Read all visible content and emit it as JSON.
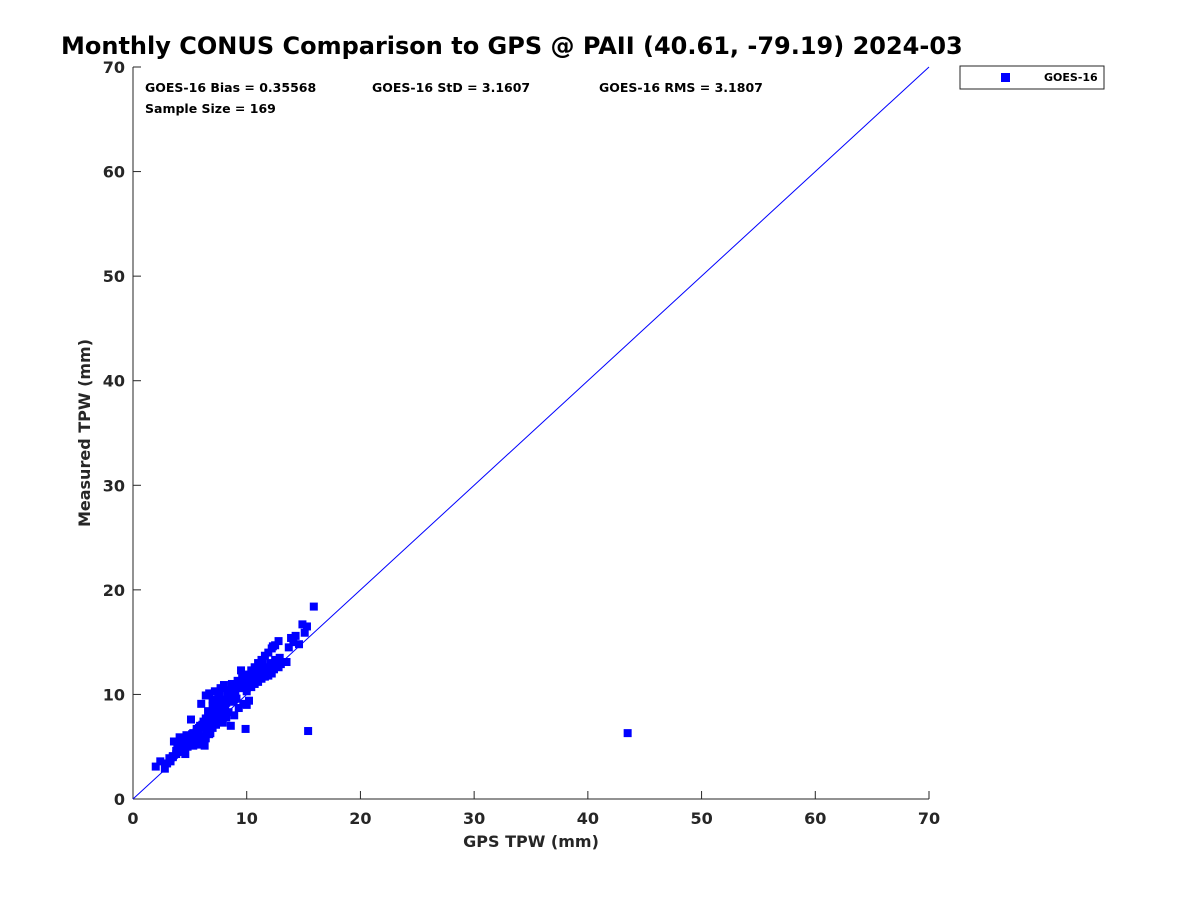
{
  "chart_data": {
    "type": "scatter",
    "title": "Monthly CONUS Comparison to GPS @ PAII (40.61, -79.19) 2024-03",
    "xlabel": "GPS TPW (mm)",
    "ylabel": "Measured TPW (mm)",
    "xlim": [
      0,
      70
    ],
    "ylim": [
      0,
      70
    ],
    "xticks": [
      "0",
      "10",
      "20",
      "30",
      "40",
      "50",
      "60",
      "70"
    ],
    "yticks": [
      "0",
      "10",
      "20",
      "30",
      "40",
      "50",
      "60",
      "70"
    ],
    "grid": false,
    "legend_placement": "outside-top-right",
    "reference_line": {
      "x": [
        0,
        70
      ],
      "y": [
        0,
        70
      ],
      "color": "#0000ff"
    },
    "stats": {
      "bias": "GOES-16 Bias = 0.35568",
      "std": "GOES-16 StD = 3.1607",
      "rms": "GOES-16 RMS = 3.1807",
      "sample_size": "Sample Size = 169"
    },
    "series": [
      {
        "name": "GOES-16",
        "color": "#0000ff",
        "marker": "square",
        "x": [
          2.0,
          2.4,
          2.8,
          3.0,
          3.2,
          3.3,
          3.5,
          3.6,
          3.8,
          3.9,
          4.0,
          4.1,
          4.2,
          4.3,
          4.5,
          4.6,
          4.7,
          4.8,
          5.0,
          5.1,
          5.2,
          5.3,
          5.5,
          5.6,
          5.7,
          5.8,
          5.9,
          6.0,
          6.1,
          6.2,
          6.3,
          6.4,
          6.5,
          6.6,
          6.7,
          6.8,
          6.9,
          7.0,
          7.1,
          7.2,
          7.3,
          7.4,
          7.5,
          7.6,
          7.7,
          7.8,
          7.9,
          8.0,
          8.1,
          8.2,
          8.3,
          8.4,
          8.5,
          8.6,
          8.7,
          8.8,
          8.9,
          9.0,
          9.1,
          9.2,
          9.3,
          9.4,
          9.5,
          9.6,
          9.7,
          9.8,
          9.9,
          10.0,
          10.1,
          10.2,
          10.3,
          10.4,
          10.5,
          10.6,
          10.7,
          10.8,
          10.9,
          11.0,
          11.1,
          11.2,
          11.3,
          11.4,
          11.5,
          11.6,
          11.7,
          11.8,
          11.9,
          12.0,
          12.1,
          12.2,
          12.3,
          12.4,
          12.5,
          12.6,
          12.7,
          12.8,
          12.9,
          13.0,
          13.5,
          13.7,
          13.9,
          14.1,
          14.3,
          14.6,
          14.9,
          15.1,
          15.3,
          15.9,
          15.4,
          43.5,
          9.9,
          10.0,
          6.0,
          6.3,
          6.6,
          6.9,
          7.2,
          7.5,
          7.8,
          8.1,
          8.4,
          8.7,
          6.4,
          6.7,
          7.0,
          7.3,
          7.6,
          7.9,
          8.2,
          8.5,
          5.8,
          6.1,
          6.4,
          6.7,
          7.0,
          7.3,
          7.6,
          3.5,
          3.8,
          4.1,
          4.4,
          4.7,
          5.0,
          5.3,
          5.6,
          5.9,
          6.2,
          6.5,
          6.8,
          7.1,
          7.4,
          7.7,
          8.0,
          8.3,
          8.6,
          8.9,
          9.2,
          9.5,
          9.8,
          10.1,
          10.4,
          10.7,
          11.0,
          11.3,
          11.6,
          11.9,
          12.2,
          12.5,
          12.8
        ],
        "y": [
          3.1,
          3.6,
          2.9,
          3.4,
          3.9,
          3.6,
          4.1,
          5.5,
          4.3,
          4.8,
          5.0,
          5.9,
          4.5,
          5.3,
          5.6,
          4.3,
          6.1,
          5.0,
          5.5,
          7.6,
          6.2,
          5.1,
          5.8,
          6.4,
          5.2,
          6.8,
          5.4,
          9.1,
          5.9,
          7.2,
          5.1,
          9.9,
          6.6,
          8.4,
          10.1,
          6.3,
          7.7,
          9.5,
          8.8,
          10.3,
          7.1,
          8.1,
          9.7,
          7.5,
          10.6,
          8.6,
          7.3,
          10.9,
          9.1,
          7.8,
          10.4,
          8.3,
          9.9,
          7.0,
          11.0,
          9.3,
          8.0,
          10.2,
          9.6,
          11.3,
          8.7,
          10.6,
          12.3,
          11.8,
          9.1,
          10.9,
          11.6,
          10.3,
          11.1,
          9.4,
          11.8,
          10.7,
          11.4,
          12.1,
          11.0,
          11.6,
          12.5,
          11.2,
          12.9,
          12.0,
          11.5,
          13.2,
          12.2,
          11.7,
          12.6,
          12.1,
          11.8,
          12.4,
          13.0,
          12.0,
          14.6,
          12.4,
          13.3,
          12.7,
          13.1,
          12.6,
          13.5,
          12.9,
          13.1,
          14.5,
          15.4,
          15.0,
          15.6,
          14.8,
          16.7,
          15.9,
          16.5,
          18.4,
          6.5,
          6.3,
          6.7,
          9.0,
          5.5,
          6.0,
          6.5,
          7.0,
          7.5,
          8.0,
          8.5,
          9.0,
          9.5,
          10.0,
          5.8,
          6.2,
          6.8,
          7.4,
          8.0,
          8.6,
          9.2,
          9.8,
          6.6,
          7.1,
          7.7,
          8.3,
          8.9,
          9.5,
          10.1,
          4.0,
          4.6,
          5.2,
          5.0,
          5.7,
          6.0,
          6.3,
          6.7,
          7.0,
          7.4,
          7.7,
          8.1,
          8.4,
          8.8,
          9.1,
          9.5,
          9.8,
          10.2,
          10.5,
          10.9,
          11.2,
          11.6,
          11.9,
          12.3,
          12.6,
          13.0,
          13.3,
          13.7,
          14.0,
          14.4,
          14.7,
          15.1
        ]
      }
    ]
  }
}
